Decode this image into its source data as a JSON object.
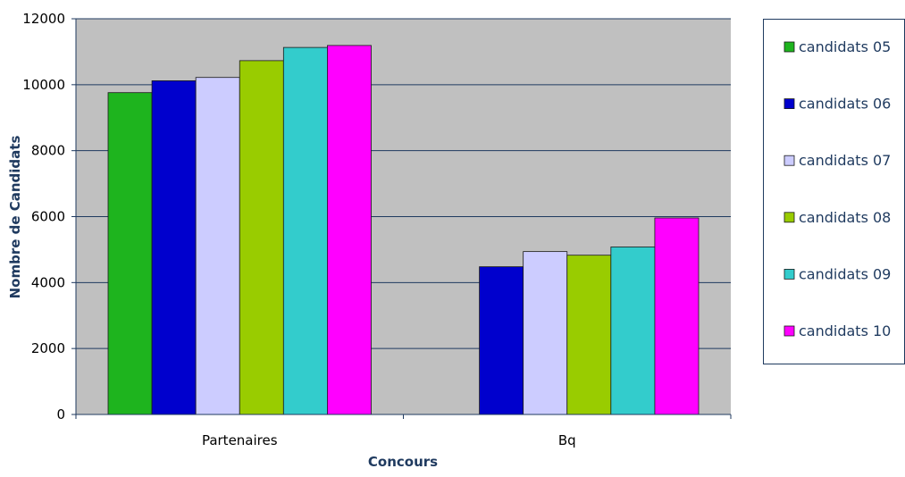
{
  "chart_data": {
    "type": "bar",
    "title": "",
    "xlabel": "Concours",
    "ylabel": "Nombre de Candidats",
    "ylim": [
      0,
      12000
    ],
    "yticks": [
      0,
      2000,
      4000,
      6000,
      8000,
      10000,
      12000
    ],
    "categories": [
      "Partenaires",
      "Bq"
    ],
    "series": [
      {
        "name": "candidats 05",
        "color": "#1eb41e",
        "values": [
          9760,
          null
        ]
      },
      {
        "name": "candidats 06",
        "color": "#0000cd",
        "values": [
          10120,
          4480
        ]
      },
      {
        "name": "candidats 07",
        "color": "#ccccff",
        "values": [
          10220,
          4940
        ]
      },
      {
        "name": "candidats 08",
        "color": "#99cc00",
        "values": [
          10730,
          4830
        ]
      },
      {
        "name": "candidats 09",
        "color": "#33cccc",
        "values": [
          11130,
          5080
        ]
      },
      {
        "name": "candidats 10",
        "color": "#ff00ff",
        "values": [
          11190,
          5960
        ]
      }
    ],
    "grid": true,
    "plot_background": "#c0c0c0",
    "gridline_color": "#1f3a5f",
    "legend_position": "right"
  }
}
